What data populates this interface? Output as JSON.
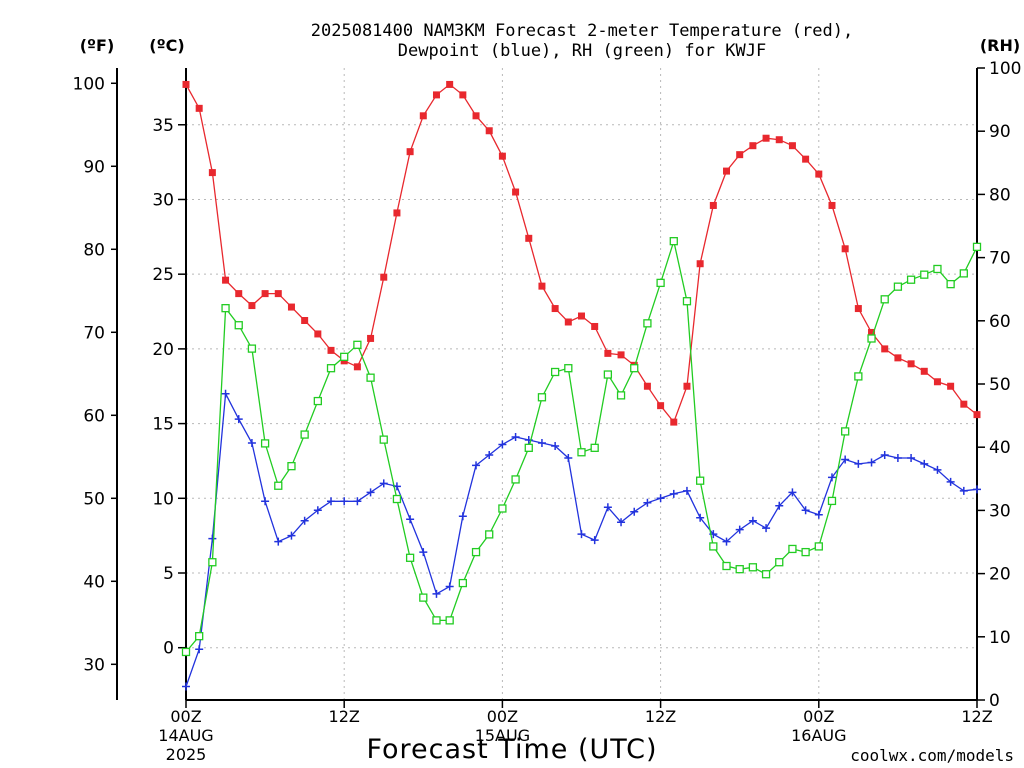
{
  "title_line1": "2025081400 NAM3KM Forecast 2-meter Temperature (red),",
  "title_line2": "Dewpoint (blue), RH (green) for KWJF",
  "unit_f": "(ºF)",
  "unit_c": "(ºC)",
  "unit_rh": "(RH)",
  "xlabel": "Forecast Time (UTC)",
  "credit": "coolwx.com/models",
  "colors": {
    "temperature": "#e8282e",
    "dewpoint": "#2233dd",
    "rh": "#22cc22",
    "grid": "#b8b8b8",
    "credit": "#d43535"
  },
  "chart_data": {
    "type": "line",
    "x_unit": "forecast hour",
    "x": [
      0,
      1,
      2,
      3,
      4,
      5,
      6,
      7,
      8,
      9,
      10,
      11,
      12,
      13,
      14,
      15,
      16,
      17,
      18,
      19,
      20,
      21,
      22,
      23,
      24,
      25,
      26,
      27,
      28,
      29,
      30,
      31,
      32,
      33,
      34,
      35,
      36,
      37,
      38,
      39,
      40,
      41,
      42,
      43,
      44,
      45,
      46,
      47,
      48,
      49,
      50,
      51,
      52,
      53,
      54,
      55,
      56,
      57,
      58,
      59,
      60
    ],
    "x_ticks": [
      {
        "x": 0,
        "label": "00Z",
        "sub": "14AUG",
        "year": "2025"
      },
      {
        "x": 12,
        "label": "12Z",
        "sub": "",
        "year": ""
      },
      {
        "x": 24,
        "label": "00Z",
        "sub": "15AUG",
        "year": ""
      },
      {
        "x": 36,
        "label": "12Z",
        "sub": "",
        "year": ""
      },
      {
        "x": 48,
        "label": "00Z",
        "sub": "16AUG",
        "year": ""
      },
      {
        "x": 60,
        "label": "12Z",
        "sub": "",
        "year": ""
      }
    ],
    "xlim": [
      0,
      60
    ],
    "y_left_celsius": {
      "ylim": [
        -3.5,
        38.8
      ],
      "ticks": [
        0,
        5,
        10,
        15,
        20,
        25,
        30,
        35
      ]
    },
    "y_left_fahrenheit": {
      "ticks": [
        30,
        40,
        50,
        60,
        70,
        80,
        90,
        100
      ]
    },
    "y_right_rh": {
      "ylim": [
        0,
        100
      ],
      "ticks": [
        0,
        10,
        20,
        30,
        40,
        50,
        60,
        70,
        80,
        90,
        100
      ]
    },
    "grid": true,
    "series": [
      {
        "key": "temperature",
        "axis": "celsius",
        "marker": "filled-square",
        "values": [
          37.7,
          36.1,
          31.8,
          24.6,
          23.7,
          22.9,
          23.7,
          23.7,
          22.8,
          21.9,
          21.0,
          19.9,
          19.2,
          18.8,
          20.7,
          24.8,
          29.1,
          33.2,
          35.6,
          37.0,
          37.7,
          37.0,
          35.6,
          34.6,
          32.9,
          30.5,
          27.4,
          24.2,
          22.7,
          21.8,
          22.2,
          21.5,
          19.7,
          19.6,
          18.9,
          17.5,
          16.2,
          15.1,
          17.5,
          25.7,
          29.6,
          31.9,
          33.0,
          33.6,
          34.1,
          34.0,
          33.6,
          32.7,
          31.7,
          29.6,
          26.7,
          22.7,
          21.1,
          20.0,
          19.4,
          19.0,
          18.5,
          17.8,
          17.5,
          16.3,
          15.6
        ]
      },
      {
        "key": "dewpoint",
        "axis": "celsius",
        "marker": "plus",
        "values": [
          -2.6,
          -0.1,
          7.3,
          17.0,
          15.3,
          13.7,
          9.8,
          7.1,
          7.5,
          8.5,
          9.2,
          9.8,
          9.8,
          9.8,
          10.4,
          11.0,
          10.8,
          8.6,
          6.4,
          3.6,
          4.1,
          8.8,
          12.2,
          12.9,
          13.6,
          14.1,
          13.9,
          13.7,
          13.5,
          12.7,
          7.6,
          7.2,
          9.4,
          8.4,
          9.1,
          9.7,
          10.0,
          10.3,
          10.5,
          8.7,
          7.6,
          7.1,
          7.9,
          8.5,
          8.0,
          9.5,
          10.4,
          9.2,
          8.9,
          11.4,
          12.6,
          12.3,
          12.4,
          12.9,
          12.7,
          12.7,
          12.3,
          11.9,
          11.1,
          10.5,
          10.6
        ]
      },
      {
        "key": "rh",
        "axis": "rh",
        "marker": "open-square",
        "values": [
          7.6,
          10.1,
          21.8,
          62.0,
          59.3,
          55.6,
          40.6,
          33.9,
          37.0,
          42.0,
          47.3,
          52.5,
          54.3,
          56.2,
          51.0,
          41.2,
          31.8,
          22.5,
          16.2,
          12.6,
          12.6,
          18.5,
          23.4,
          26.2,
          30.3,
          34.9,
          39.9,
          47.9,
          51.9,
          52.5,
          39.2,
          39.9,
          51.5,
          48.2,
          52.5,
          59.6,
          66.0,
          72.6,
          63.1,
          34.7,
          24.3,
          21.2,
          20.7,
          21.0,
          19.9,
          21.8,
          23.9,
          23.4,
          24.3,
          31.5,
          42.5,
          51.2,
          57.2,
          63.4,
          65.4,
          66.5,
          67.3,
          68.2,
          65.8,
          67.5,
          71.7
        ]
      }
    ]
  }
}
